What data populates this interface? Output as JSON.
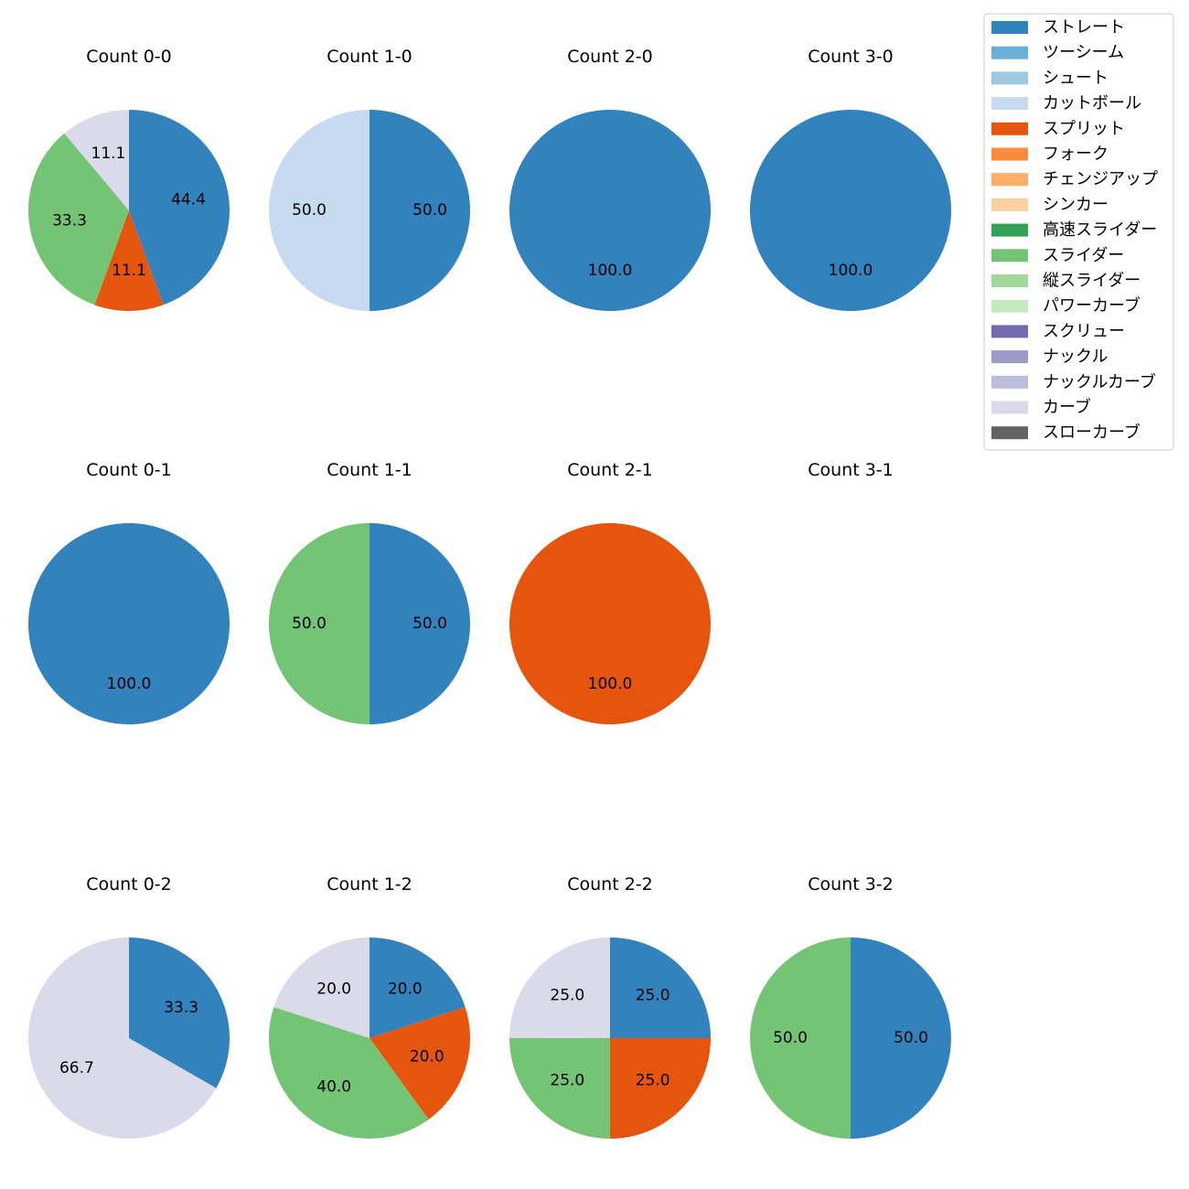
{
  "chart_data": {
    "type": "pie",
    "legend": {
      "placement": "top-right",
      "entries": [
        {
          "name": "ストレート",
          "color": "#3182bd"
        },
        {
          "name": "ツーシーム",
          "color": "#6baed6"
        },
        {
          "name": "シュート",
          "color": "#9ecae1"
        },
        {
          "name": "カットボール",
          "color": "#c6dbef"
        },
        {
          "name": "スプリット",
          "color": "#e6550d"
        },
        {
          "name": "フォーク",
          "color": "#fd8d3c"
        },
        {
          "name": "チェンジアップ",
          "color": "#fdae6b"
        },
        {
          "name": "シンカー",
          "color": "#fdd0a2"
        },
        {
          "name": "高速スライダー",
          "color": "#31a354"
        },
        {
          "name": "スライダー",
          "color": "#74c476"
        },
        {
          "name": "縦スライダー",
          "color": "#a1d99b"
        },
        {
          "name": "パワーカーブ",
          "color": "#c7e9c0"
        },
        {
          "name": "スクリュー",
          "color": "#756bb1"
        },
        {
          "name": "ナックル",
          "color": "#9e9ac8"
        },
        {
          "name": "ナックルカーブ",
          "color": "#bcbddc"
        },
        {
          "name": "カーブ",
          "color": "#dadaeb"
        },
        {
          "name": "スローカーブ",
          "color": "#636363"
        }
      ]
    },
    "panels": [
      {
        "title": "Count 0-0",
        "slices": [
          {
            "pitch": "ストレート",
            "value": 44.4
          },
          {
            "pitch": "スプリット",
            "value": 11.1
          },
          {
            "pitch": "スライダー",
            "value": 33.3
          },
          {
            "pitch": "カーブ",
            "value": 11.1
          }
        ]
      },
      {
        "title": "Count 1-0",
        "slices": [
          {
            "pitch": "ストレート",
            "value": 50.0
          },
          {
            "pitch": "カットボール",
            "value": 50.0
          }
        ]
      },
      {
        "title": "Count 2-0",
        "slices": [
          {
            "pitch": "ストレート",
            "value": 100.0
          }
        ]
      },
      {
        "title": "Count 3-0",
        "slices": [
          {
            "pitch": "ストレート",
            "value": 100.0
          }
        ]
      },
      {
        "title": "Count 0-1",
        "slices": [
          {
            "pitch": "ストレート",
            "value": 100.0
          }
        ]
      },
      {
        "title": "Count 1-1",
        "slices": [
          {
            "pitch": "ストレート",
            "value": 50.0
          },
          {
            "pitch": "スライダー",
            "value": 50.0
          }
        ]
      },
      {
        "title": "Count 2-1",
        "slices": [
          {
            "pitch": "スプリット",
            "value": 100.0
          }
        ]
      },
      {
        "title": "Count 3-1",
        "slices": []
      },
      {
        "title": "Count 0-2",
        "slices": [
          {
            "pitch": "ストレート",
            "value": 33.3
          },
          {
            "pitch": "カーブ",
            "value": 66.7
          }
        ]
      },
      {
        "title": "Count 1-2",
        "slices": [
          {
            "pitch": "ストレート",
            "value": 20.0
          },
          {
            "pitch": "スプリット",
            "value": 20.0
          },
          {
            "pitch": "スライダー",
            "value": 40.0
          },
          {
            "pitch": "カーブ",
            "value": 20.0
          }
        ]
      },
      {
        "title": "Count 2-2",
        "slices": [
          {
            "pitch": "ストレート",
            "value": 25.0
          },
          {
            "pitch": "スプリット",
            "value": 25.0
          },
          {
            "pitch": "スライダー",
            "value": 25.0
          },
          {
            "pitch": "カーブ",
            "value": 25.0
          }
        ]
      },
      {
        "title": "Count 3-2",
        "slices": [
          {
            "pitch": "ストレート",
            "value": 50.0
          },
          {
            "pitch": "スライダー",
            "value": 50.0
          }
        ]
      }
    ]
  }
}
